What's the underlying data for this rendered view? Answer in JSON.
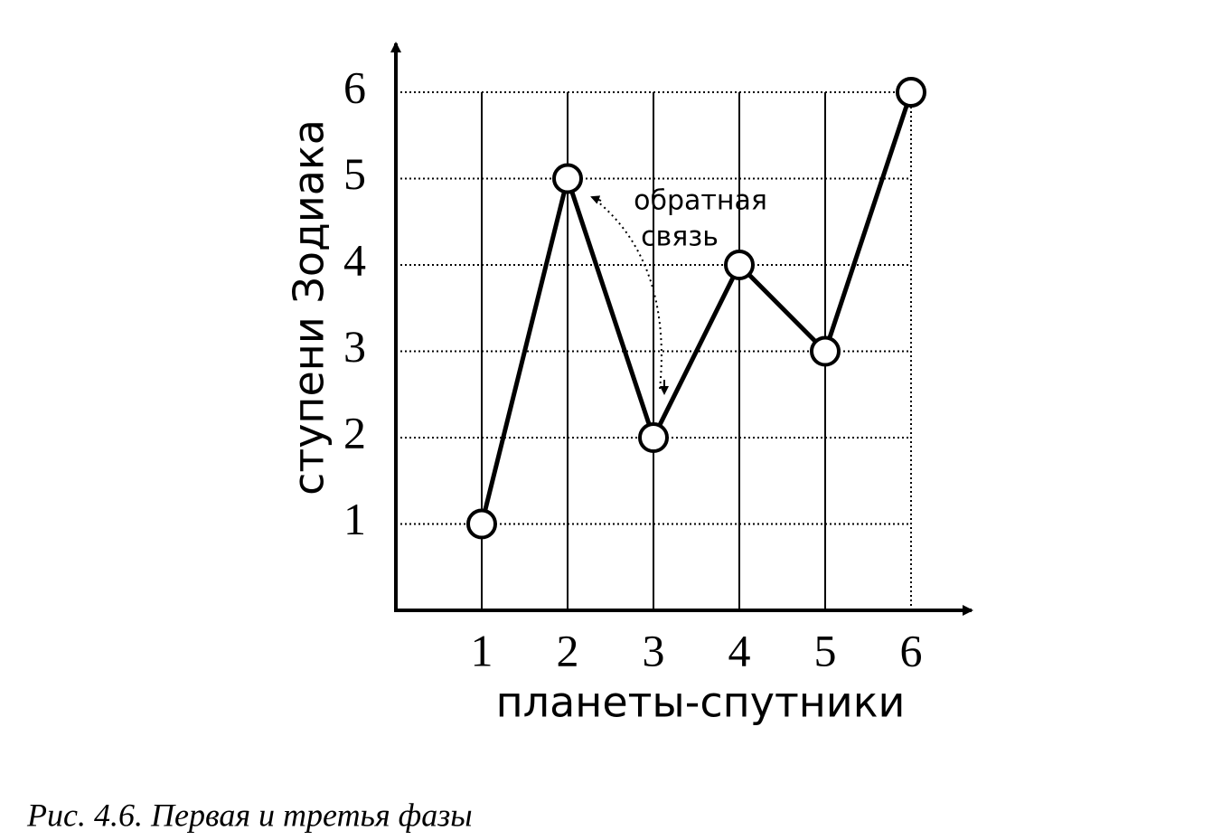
{
  "chart_data": {
    "type": "line",
    "x": [
      1,
      2,
      3,
      4,
      5,
      6
    ],
    "values": [
      1,
      5,
      2,
      4,
      3,
      6
    ],
    "xlim": [
      0,
      6
    ],
    "ylim": [
      0,
      6
    ],
    "xticks": [
      1,
      2,
      3,
      4,
      5,
      6
    ],
    "yticks": [
      1,
      2,
      3,
      4,
      5,
      6
    ],
    "x_label": "планеты-спутники",
    "y_label": "ступени Зодиака",
    "annotation": [
      "обратная",
      "связь"
    ],
    "caption": "Рис. 4.6. Первая и третья фазы",
    "color": "#000000",
    "grid": true
  }
}
